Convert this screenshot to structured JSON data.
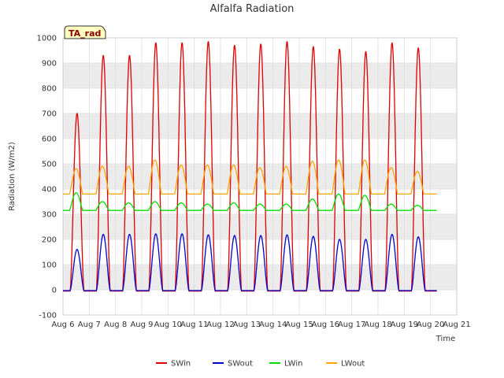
{
  "chart_data": {
    "type": "line",
    "title": "Alfalfa Radiation",
    "xlabel": "Time",
    "ylabel": "Radiation (W/m2)",
    "badge": "TA_rad",
    "x_ticks": [
      "Aug 6",
      "Aug 7",
      "Aug 8",
      "Aug 9",
      "Aug 10",
      "Aug 11",
      "Aug 12",
      "Aug 13",
      "Aug 14",
      "Aug 15",
      "Aug 16",
      "Aug 17",
      "Aug 18",
      "Aug 19",
      "Aug 20",
      "Aug 21"
    ],
    "xlim": [
      6,
      21
    ],
    "ylim": [
      -100,
      1000
    ],
    "y_ticks": [
      -100,
      0,
      100,
      200,
      300,
      400,
      500,
      600,
      700,
      800,
      900,
      1000
    ],
    "grid": true,
    "legend_position": "bottom-center",
    "colors": {
      "SWin": "#dd0000",
      "SWout": "#0000cc",
      "LWin": "#00dd00",
      "LWout": "#ffa500",
      "band": "#ebebeb",
      "badge_bg": "#ffffc0"
    },
    "series": [
      {
        "name": "SWin",
        "day_peaks": [
          700,
          930,
          930,
          980,
          980,
          985,
          970,
          975,
          985,
          965,
          955,
          945,
          980,
          960
        ],
        "night_value": -5
      },
      {
        "name": "SWout",
        "day_peaks": [
          160,
          220,
          220,
          222,
          222,
          218,
          215,
          215,
          218,
          212,
          200,
          200,
          220,
          210
        ],
        "night_value": -3
      },
      {
        "name": "LWin",
        "day_peaks": [
          385,
          350,
          345,
          350,
          345,
          340,
          345,
          340,
          340,
          360,
          380,
          375,
          340,
          335
        ],
        "night_value": 315
      },
      {
        "name": "LWout",
        "day_peaks": [
          480,
          490,
          490,
          515,
          495,
          495,
          495,
          485,
          490,
          510,
          515,
          515,
          485,
          470
        ],
        "night_value": 380
      }
    ],
    "x_start": 6,
    "x_end": 20.25
  }
}
